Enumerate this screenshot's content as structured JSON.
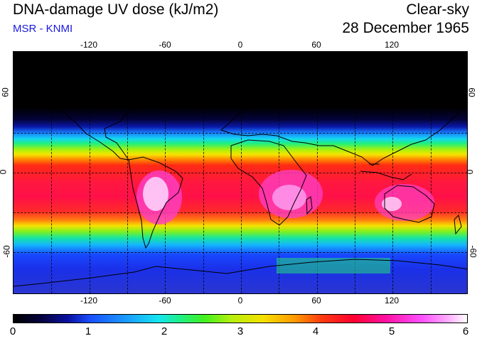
{
  "header": {
    "title": "DNA-damage UV dose (kJ/m2)",
    "subtitle": "MSR - KNMI",
    "mode": "Clear-sky",
    "date": "28 December 1965"
  },
  "axes": {
    "longitude_ticks": [
      "-120",
      "-60",
      "0",
      "60",
      "120"
    ],
    "latitude_ticks": [
      "60",
      "0",
      "-60"
    ]
  },
  "colorbar": {
    "labels": [
      "0",
      "1",
      "2",
      "3",
      "4",
      "5",
      "6"
    ],
    "min": 0,
    "max": 6,
    "unit": "kJ/m2"
  },
  "colors": {
    "subtitle": "#1a1adc",
    "low": "#000000",
    "mid": "#f6e400",
    "high": "#ffffff"
  }
}
